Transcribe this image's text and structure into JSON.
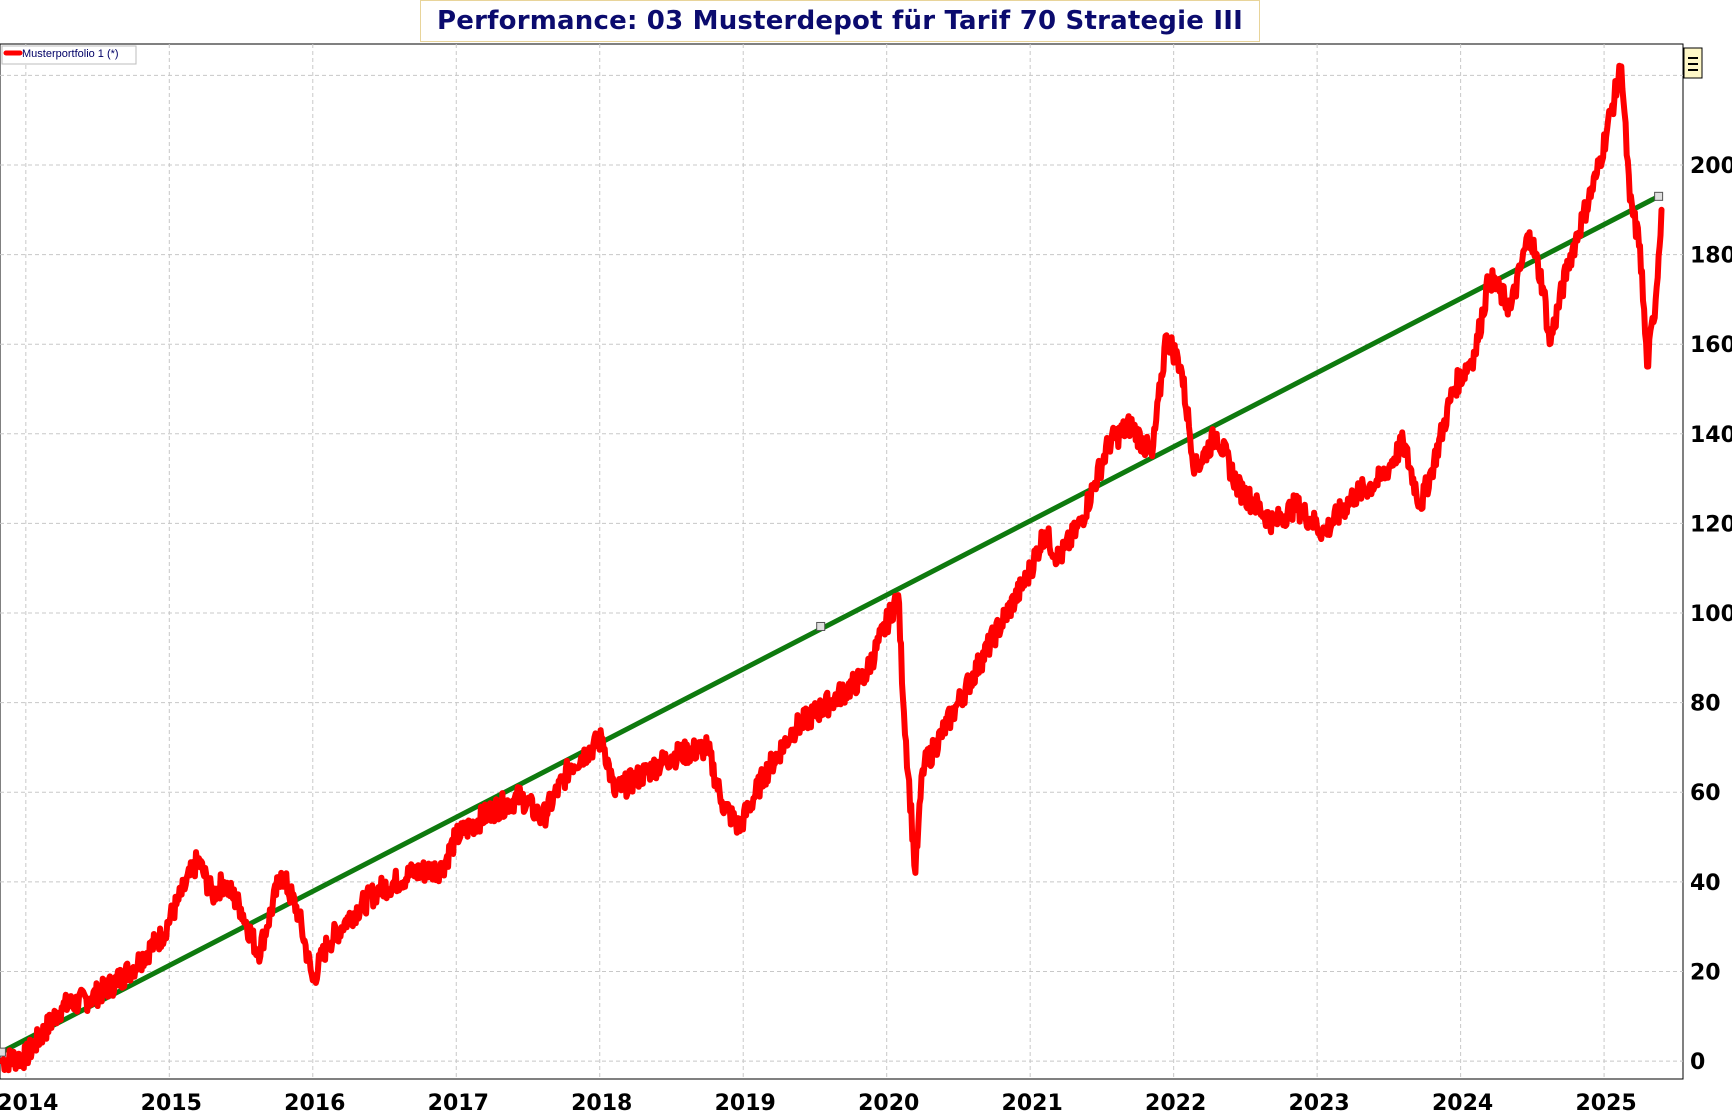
{
  "chart_data": {
    "type": "line",
    "title": "Performance: 03 Musterdepot für Tarif 70 Strategie III",
    "legend": {
      "label": "Musterportfolio 1 (*)",
      "position": "top-left"
    },
    "x_tick_labels": [
      "2014",
      "2015",
      "2016",
      "2017",
      "2018",
      "2019",
      "2020",
      "2021",
      "2022",
      "2023",
      "2024",
      "2025"
    ],
    "y_tick_labels": [
      "0",
      "20",
      "40",
      "60",
      "80",
      "100",
      "120",
      "140",
      "160",
      "180",
      "200"
    ],
    "ylim": [
      -4,
      227
    ],
    "xlim": [
      2013.82,
      2025.55
    ],
    "grid": true,
    "colors": {
      "series": "#ff0000",
      "trend": "#0e7a0e",
      "grid": "#c8c8c8",
      "title": "#0b0b6e"
    },
    "series": [
      {
        "name": "Musterportfolio 1 (*)",
        "x": [
          2013.83,
          2014.0,
          2014.25,
          2014.45,
          2014.6,
          2014.75,
          2014.95,
          2015.05,
          2015.2,
          2015.3,
          2015.38,
          2015.5,
          2015.62,
          2015.68,
          2015.78,
          2015.9,
          2016.0,
          2016.1,
          2016.25,
          2016.45,
          2016.7,
          2016.9,
          2017.0,
          2017.25,
          2017.45,
          2017.6,
          2017.8,
          2018.02,
          2018.1,
          2018.25,
          2018.5,
          2018.75,
          2018.85,
          2018.97,
          2019.15,
          2019.35,
          2019.6,
          2019.85,
          2020.08,
          2020.12,
          2020.2,
          2020.25,
          2020.5,
          2020.75,
          2020.98,
          2021.1,
          2021.2,
          2021.35,
          2021.55,
          2021.7,
          2021.85,
          2021.95,
          2022.05,
          2022.15,
          2022.3,
          2022.45,
          2022.7,
          2022.85,
          2023.05,
          2023.25,
          2023.45,
          2023.6,
          2023.72,
          2023.8,
          2023.95,
          2024.1,
          2024.2,
          2024.35,
          2024.48,
          2024.58,
          2024.62,
          2024.75,
          2024.85,
          2024.95,
          2025.05,
          2025.12,
          2025.18,
          2025.25,
          2025.3,
          2025.36,
          2025.4
        ],
        "values": [
          0,
          1,
          12,
          14,
          17,
          21,
          28,
          35,
          45,
          37,
          40,
          34,
          24,
          30,
          42,
          33,
          18,
          26,
          32,
          38,
          42,
          43,
          50,
          56,
          59,
          54,
          66,
          72,
          60,
          63,
          68,
          70,
          58,
          52,
          64,
          74,
          80,
          86,
          104,
          78,
          42,
          65,
          80,
          95,
          108,
          118,
          112,
          120,
          138,
          142,
          135,
          162,
          155,
          132,
          140,
          128,
          120,
          124,
          118,
          126,
          130,
          138,
          124,
          132,
          150,
          158,
          175,
          168,
          185,
          172,
          160,
          178,
          188,
          198,
          212,
          222,
          192,
          182,
          155,
          170,
          190
        ]
      },
      {
        "name": "",
        "x": [
          2013.83,
          2019.54,
          2025.38
        ],
        "values": [
          2,
          97,
          193
        ]
      }
    ]
  }
}
